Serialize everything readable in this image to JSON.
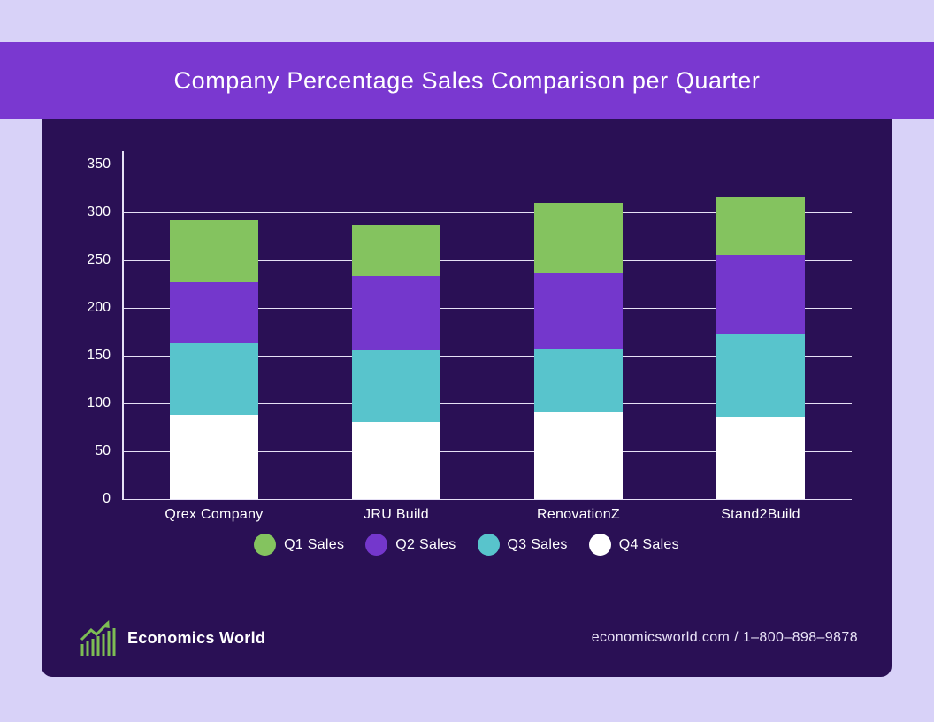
{
  "header": {
    "title": "Company Percentage Sales Comparison per Quarter"
  },
  "chart_data": {
    "type": "bar",
    "stacked": true,
    "title": "Company Percentage Sales Comparison per Quarter",
    "categories": [
      "Qrex Company",
      "JRU Build",
      "RenovationZ",
      "Stand2Build"
    ],
    "series": [
      {
        "name": "Q1 Sales",
        "color": "#84c35f",
        "values": [
          65,
          54,
          74,
          60
        ]
      },
      {
        "name": "Q2 Sales",
        "color": "#7437cc",
        "values": [
          64,
          77,
          79,
          83
        ]
      },
      {
        "name": "Q3 Sales",
        "color": "#58c4cc",
        "values": [
          75,
          75,
          66,
          87
        ]
      },
      {
        "name": "Q4 Sales",
        "color": "#ffffff",
        "values": [
          88,
          81,
          91,
          86
        ]
      }
    ],
    "totals": [
      292,
      287,
      310,
      316
    ],
    "xlabel": "",
    "ylabel": "",
    "ylim": [
      0,
      350
    ],
    "yticks": [
      0,
      50,
      100,
      150,
      200,
      250,
      300,
      350
    ],
    "grid": true,
    "legend_position": "bottom"
  },
  "footer": {
    "brand": "Economics World",
    "contact": "economicsworld.com / 1–800–898–9878"
  },
  "colors": {
    "page_background": "#d8d2f8",
    "header_band": "#7a38d0",
    "chart_card": "#2a1055",
    "gridline": "#e6e1f5",
    "text": "#ffffff",
    "logo_green": "#7dbd54"
  },
  "icons": {
    "logo": "growth-bar-chart-arrow-icon"
  }
}
